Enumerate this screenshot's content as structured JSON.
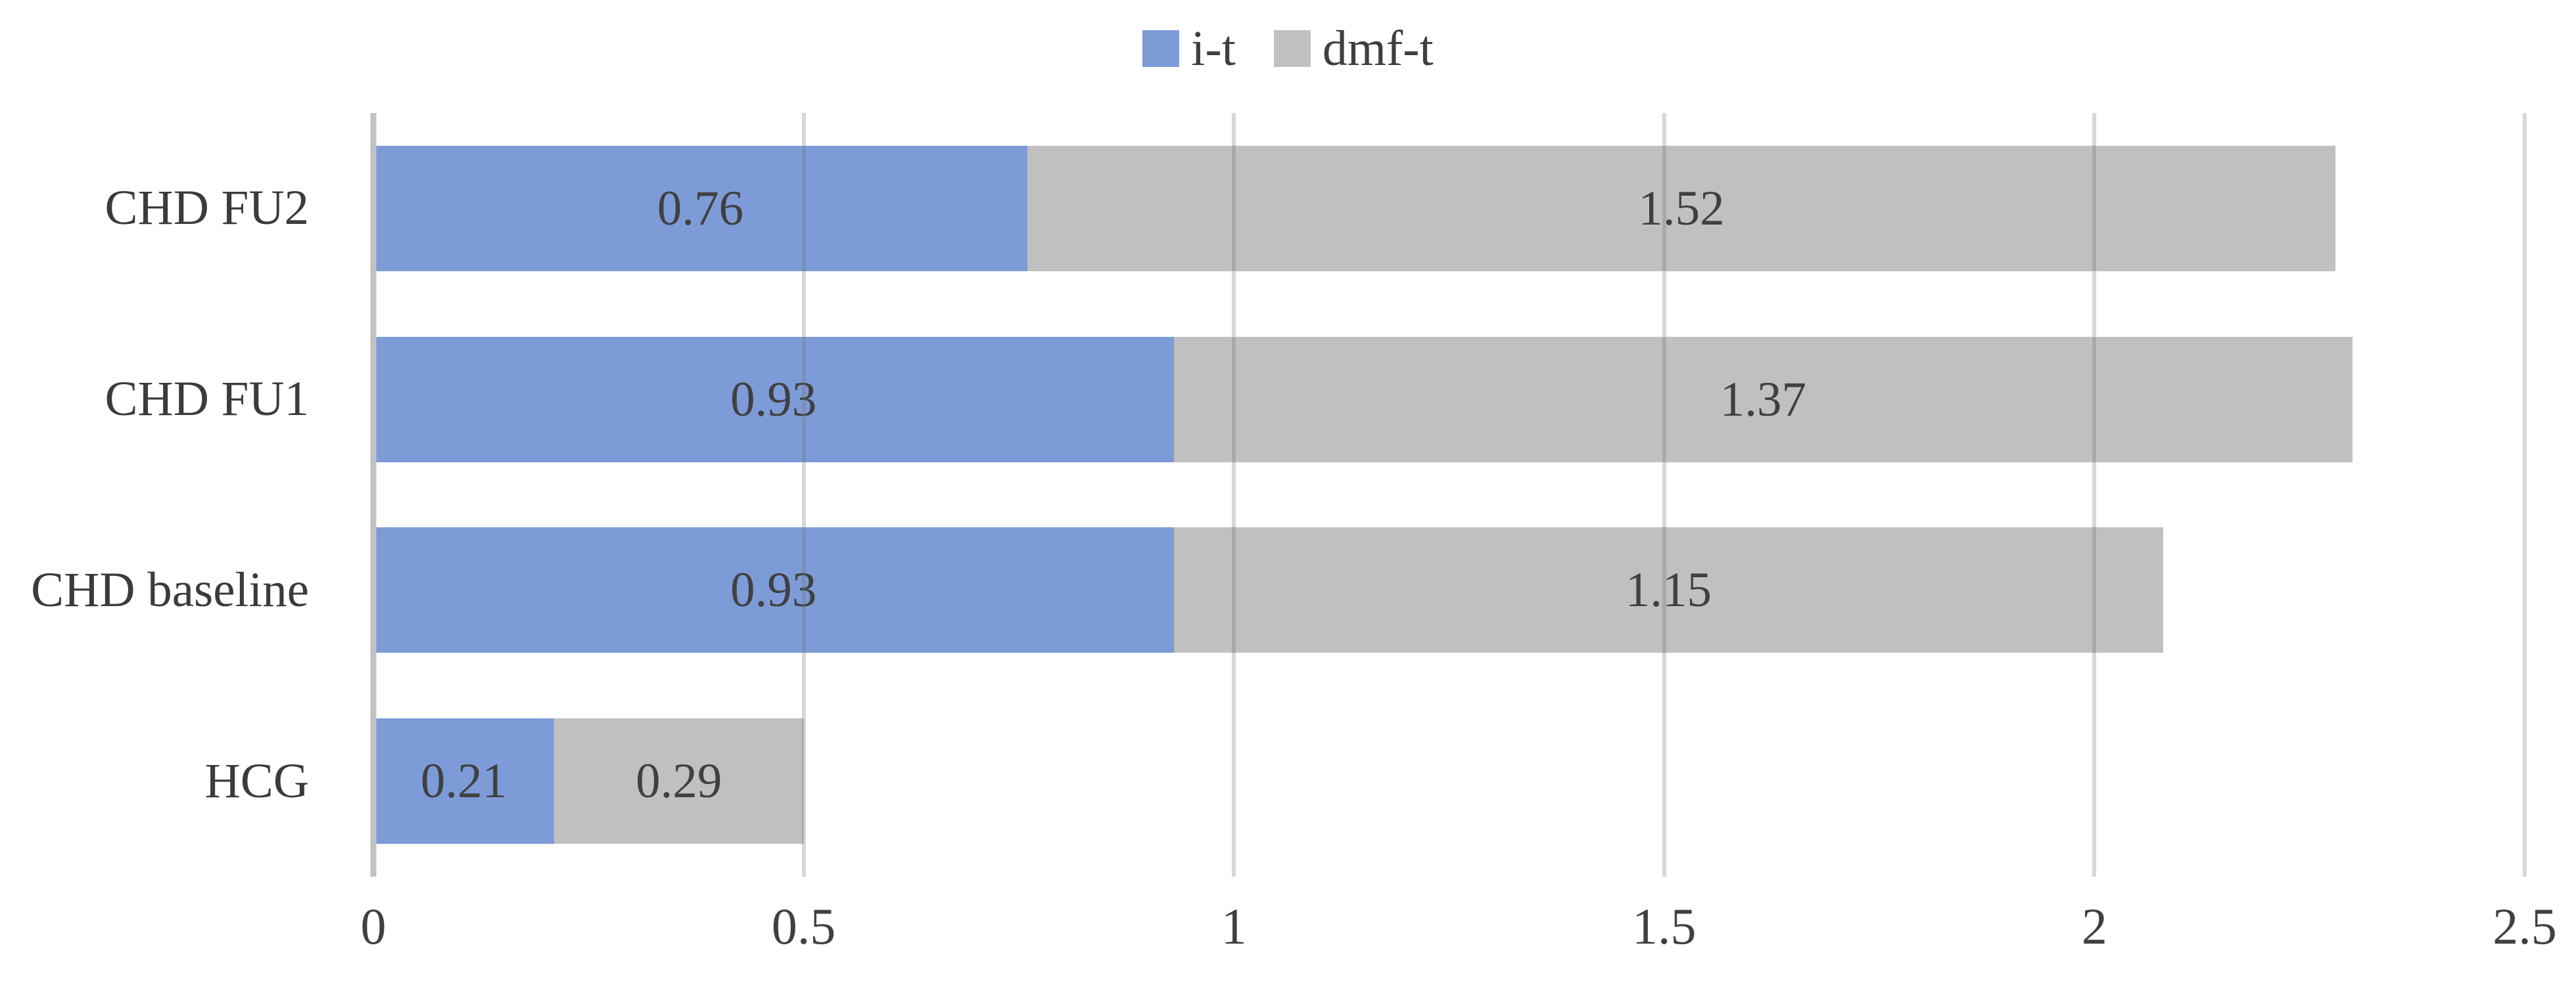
{
  "chart_data": {
    "type": "bar",
    "orientation": "horizontal",
    "stacked": true,
    "title": "",
    "xlabel": "",
    "ylabel": "",
    "categories": [
      "CHD FU2",
      "CHD FU1",
      "CHD baseline",
      "HCG"
    ],
    "series": [
      {
        "name": "i-t",
        "color": "#7D9BD7",
        "values": [
          0.76,
          0.93,
          0.93,
          0.21
        ],
        "labels": [
          "0.76",
          "0.93",
          "0.93",
          "0.21"
        ]
      },
      {
        "name": "dmf-t",
        "color": "#C0C0C0",
        "values": [
          1.52,
          1.37,
          1.15,
          0.29
        ],
        "labels": [
          "1.52",
          "1.37",
          "1.15",
          "0.29"
        ]
      }
    ],
    "totals": [
      2.28,
      2.3,
      2.08,
      0.5
    ],
    "xlim": [
      0,
      2.5
    ],
    "xticks": [
      0,
      0.5,
      1,
      1.5,
      2,
      2.5
    ],
    "xtick_labels": [
      "0",
      "0.5",
      "1",
      "1.5",
      "2",
      "2.5"
    ],
    "grid": true,
    "legend_position": "top",
    "colors": {
      "data_label": "#404040",
      "axis_text": "#404040",
      "gridline": "rgba(110,110,110,0.28)",
      "axis_line": "#C2C2C2",
      "background": "#FFFFFF"
    }
  }
}
